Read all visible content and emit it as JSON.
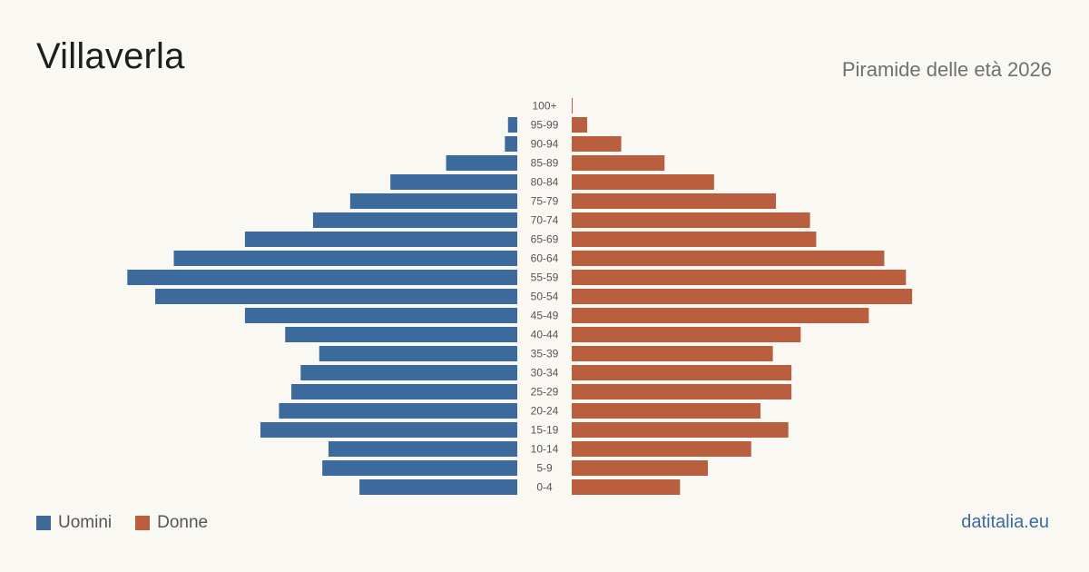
{
  "header": {
    "title": "Villaverla",
    "subtitle": "Piramide delle età 2026"
  },
  "legend": {
    "men_label": "Uomini",
    "women_label": "Donne"
  },
  "footer": {
    "source": "datitalia.eu"
  },
  "colors": {
    "men": "#3c6a9c",
    "women": "#b95e3e"
  },
  "chart_data": {
    "type": "bar",
    "orientation": "horizontal",
    "categories": [
      "100+",
      "95-99",
      "90-94",
      "85-89",
      "80-84",
      "75-79",
      "70-74",
      "65-69",
      "60-64",
      "55-59",
      "50-54",
      "45-49",
      "40-44",
      "35-39",
      "30-34",
      "25-29",
      "20-24",
      "15-19",
      "10-14",
      "5-9",
      "0-4"
    ],
    "series": [
      {
        "name": "Uomini",
        "values": [
          0,
          3,
          4,
          23,
          41,
          54,
          66,
          88,
          111,
          126,
          117,
          88,
          75,
          64,
          70,
          73,
          77,
          83,
          61,
          63,
          51
        ]
      },
      {
        "name": "Donne",
        "values": [
          0.3,
          5,
          16,
          30,
          46,
          66,
          77,
          79,
          101,
          108,
          110,
          96,
          74,
          65,
          71,
          71,
          61,
          70,
          58,
          44,
          35
        ]
      }
    ],
    "legend_position": "bottom-left",
    "grid": false
  }
}
